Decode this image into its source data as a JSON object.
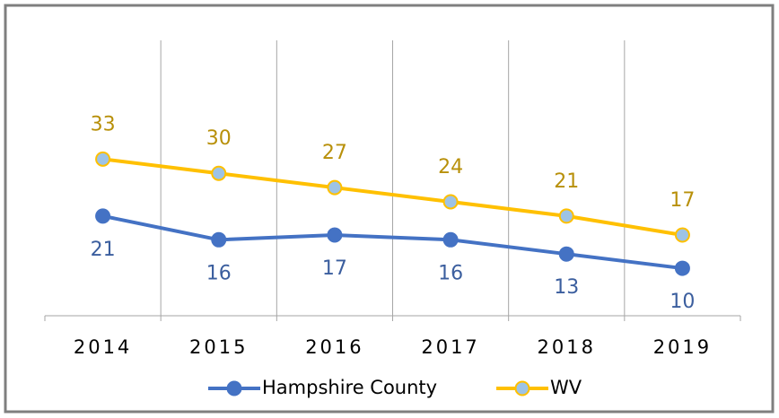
{
  "chart_data": {
    "type": "line",
    "categories": [
      "2014",
      "2015",
      "2016",
      "2017",
      "2018",
      "2019"
    ],
    "series": [
      {
        "name": "Hampshire County",
        "color": "#4472c4",
        "marker_fill": "#4472c4",
        "label_color": "#3b5e9e",
        "label_position": "below",
        "values": [
          21,
          16,
          17,
          16,
          13,
          10
        ]
      },
      {
        "name": "WV",
        "color": "#ffc000",
        "marker_fill": "#9dc3e6",
        "label_color": "#b8900a",
        "label_position": "above",
        "values": [
          33,
          30,
          27,
          24,
          21,
          17
        ]
      }
    ],
    "ylim": [
      0,
      58
    ],
    "grid": true,
    "legend": "bottom"
  }
}
